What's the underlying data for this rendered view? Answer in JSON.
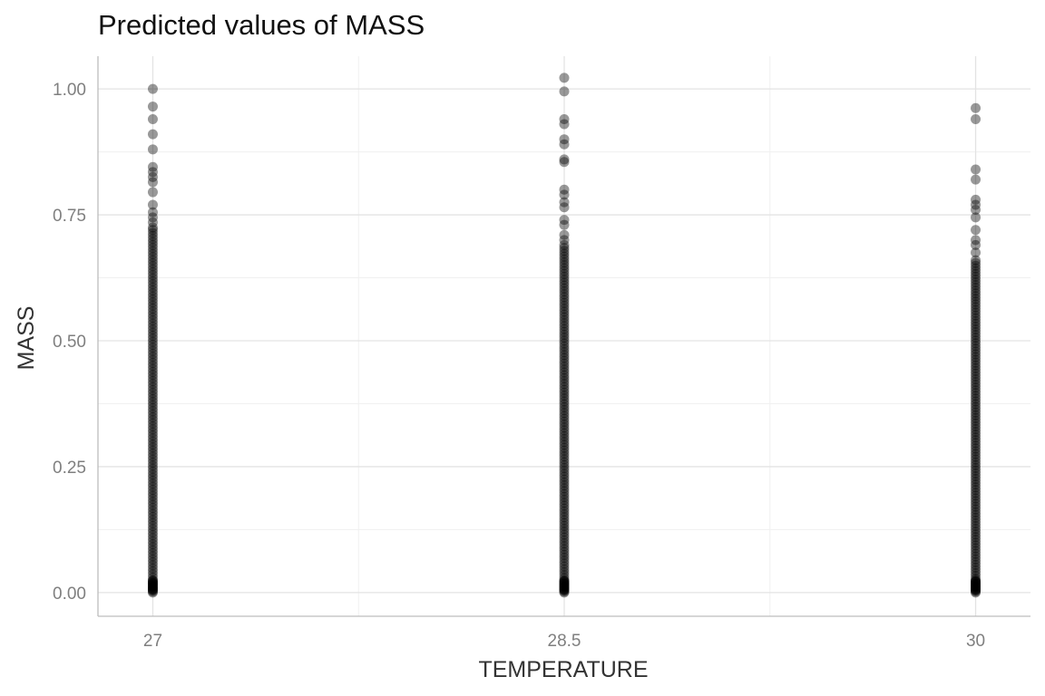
{
  "chart_data": {
    "type": "scatter",
    "title": "Predicted values of MASS",
    "xlabel": "TEMPERATURE",
    "ylabel": "MASS",
    "x_ticks": [
      {
        "value": 27,
        "label": "27"
      },
      {
        "value": 28.5,
        "label": "28.5"
      },
      {
        "value": 30,
        "label": "30"
      }
    ],
    "y_ticks": [
      {
        "value": 0,
        "label": "0.00"
      },
      {
        "value": 0.25,
        "label": "0.25"
      },
      {
        "value": 0.5,
        "label": "0.50"
      },
      {
        "value": 0.75,
        "label": "0.75"
      },
      {
        "value": 1.0,
        "label": "1.00"
      }
    ],
    "xlim": [
      26.8,
      30.2
    ],
    "ylim": [
      -0.047,
      1.065
    ],
    "grid": true,
    "point_color": "#000000",
    "point_alpha": 0.4,
    "series": [
      {
        "x": 27,
        "dense_range": [
          0.0,
          0.72
        ],
        "values": [
          1.0,
          0.965,
          0.94,
          0.91,
          0.88,
          0.845,
          0.835,
          0.825,
          0.815,
          0.795,
          0.77,
          0.755,
          0.745,
          0.735,
          0.725
        ]
      },
      {
        "x": 28.5,
        "dense_range": [
          0.0,
          0.69
        ],
        "values": [
          1.022,
          0.995,
          0.94,
          0.93,
          0.9,
          0.89,
          0.86,
          0.855,
          0.8,
          0.79,
          0.775,
          0.765,
          0.74,
          0.73,
          0.71,
          0.7
        ]
      },
      {
        "x": 30,
        "dense_range": [
          0.0,
          0.66
        ],
        "values": [
          0.962,
          0.94,
          0.84,
          0.82,
          0.78,
          0.77,
          0.76,
          0.745,
          0.72,
          0.7,
          0.69,
          0.675
        ]
      }
    ]
  }
}
